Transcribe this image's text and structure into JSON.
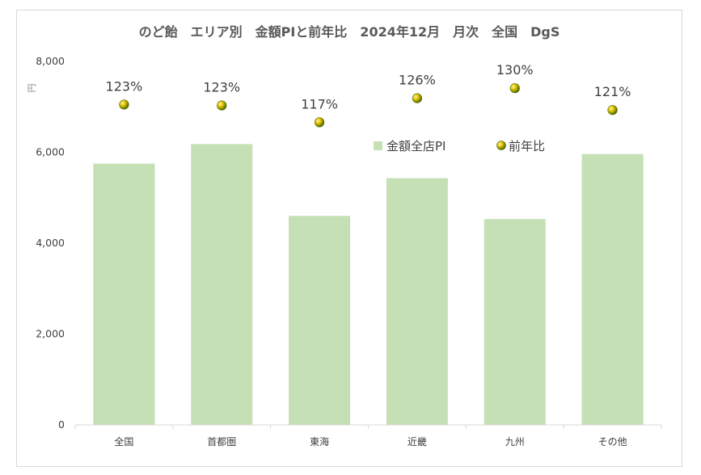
{
  "chart_data": {
    "type": "bar",
    "title": "のど飴　エリア別　金額PIと前年比　2024年12月　月次　全国　DgS",
    "ylabel": "円",
    "ylim": [
      0,
      8000
    ],
    "yticks": [
      "0",
      "2,000",
      "4,000",
      "6,000",
      "8,000"
    ],
    "categories": [
      "全国",
      "首都圏",
      "東海",
      "近畿",
      "九州",
      "その他"
    ],
    "series": [
      {
        "name": "金額全店PI",
        "type": "bar",
        "values": [
          5750,
          6180,
          4600,
          5430,
          4530,
          5960
        ],
        "color": "#c5e0b4"
      },
      {
        "name": "前年比",
        "type": "scatter",
        "labels": [
          "123%",
          "123%",
          "117%",
          "126%",
          "130%",
          "121%"
        ],
        "values": [
          7050,
          7030,
          6660,
          7190,
          7410,
          6930
        ],
        "color": "#c9b800"
      }
    ],
    "legend": "inside-top-right",
    "grid": false
  }
}
